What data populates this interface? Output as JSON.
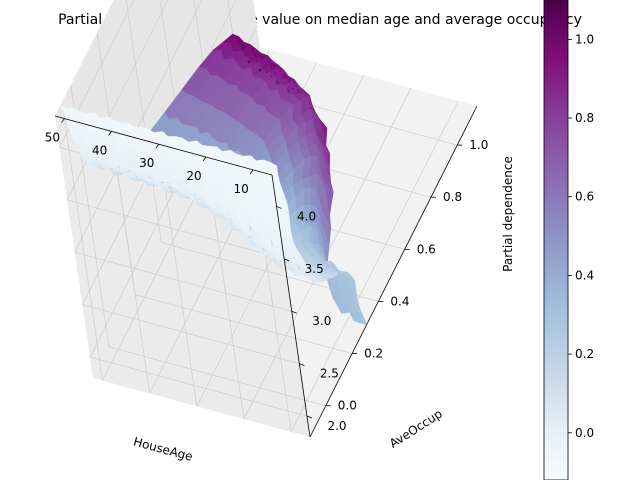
{
  "chart_data": {
    "type": "surface",
    "title": "Partial dependence of house value on median age and average occupancy",
    "x_axis": {
      "label": "HouseAge",
      "ticks": [
        "50",
        "40",
        "30",
        "20",
        "10"
      ],
      "range": [
        52,
        6
      ]
    },
    "y_axis": {
      "label": "AveOccup",
      "ticks": [
        "2.0",
        "2.5",
        "3.0",
        "3.5",
        "4.0"
      ],
      "range": [
        1.8,
        4.3
      ]
    },
    "z_axis": {
      "label": "Partial dependence",
      "ticks": [
        "0.0",
        "0.2",
        "0.4",
        "0.6",
        "0.8",
        "1.0"
      ],
      "range": [
        -0.12,
        1.15
      ]
    },
    "colorbar": {
      "colormap": "BuPu",
      "ticks": [
        "0.0",
        "0.2",
        "0.4",
        "0.6",
        "0.8",
        "1.0"
      ],
      "range": [
        -0.12,
        1.1
      ]
    },
    "grid": true,
    "colors": [
      "#f7fcfd",
      "#e0ecf4",
      "#bfd3e6",
      "#9ebcda",
      "#8c96c6",
      "#8c6bb1",
      "#88419d",
      "#810f7c",
      "#4d004b"
    ],
    "occupancy_profile": [
      {
        "ave_occup": 1.8,
        "value": 1.08
      },
      {
        "ave_occup": 2.3,
        "value": 1.0
      },
      {
        "ave_occup": 2.5,
        "value": 0.85
      },
      {
        "ave_occup": 2.7,
        "value": 0.55
      },
      {
        "ave_occup": 2.9,
        "value": 0.27
      },
      {
        "ave_occup": 3.2,
        "value": 0.12
      },
      {
        "ave_occup": 3.6,
        "value": 0.0
      },
      {
        "ave_occup": 4.3,
        "value": -0.08
      }
    ],
    "age_profile": [
      {
        "house_age": 52,
        "value": 1.03
      },
      {
        "house_age": 42,
        "value": 0.98
      },
      {
        "house_age": 32,
        "value": 0.9
      },
      {
        "house_age": 25,
        "value": 0.72
      },
      {
        "house_age": 19,
        "value": 0.5
      },
      {
        "house_age": 14,
        "value": 0.38
      },
      {
        "house_age": 6,
        "value": 0.34
      }
    ]
  }
}
